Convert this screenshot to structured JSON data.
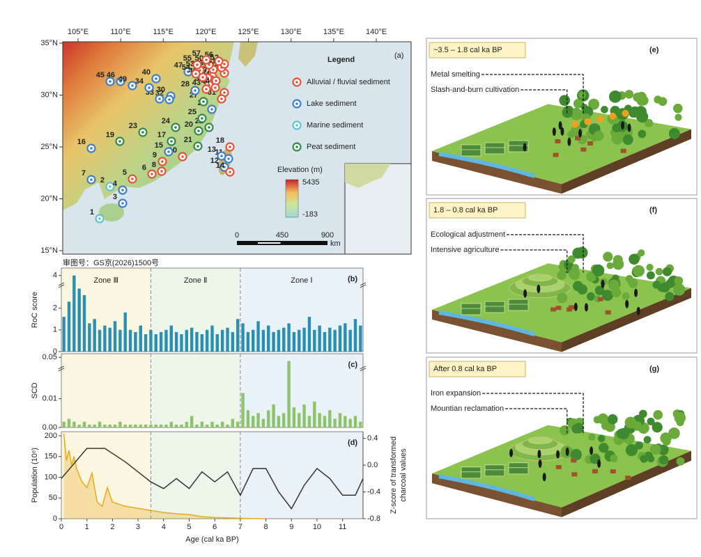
{
  "map": {
    "panel_label": "(a)",
    "legend_title": "Legend",
    "site_types": [
      {
        "name": "Alluvial / fluvial  sediment",
        "color": "#e0553a"
      },
      {
        "name": "Lake sediment",
        "color": "#3d7fc9"
      },
      {
        "name": "Marine sediment",
        "color": "#5cc4d6"
      },
      {
        "name": "Peat  sediment",
        "color": "#2e8b4a"
      }
    ],
    "sites": {
      "labels": [
        "1",
        "2",
        "3",
        "4",
        "5",
        "6",
        "7",
        "8",
        "9",
        "10",
        "11",
        "12",
        "13",
        "14",
        "15",
        "16",
        "17",
        "18",
        "19",
        "20",
        "21",
        "22",
        "23",
        "24",
        "25",
        "26",
        "27",
        "28",
        "29",
        "30",
        "31",
        "32",
        "33",
        "34",
        "35",
        "36",
        "37",
        "38",
        "39",
        "40",
        "41",
        "42",
        "43",
        "44",
        "45",
        "46",
        "47",
        "48",
        "49",
        "50",
        "51",
        "52",
        "53",
        "54",
        "55",
        "56",
        "57"
      ],
      "types": [
        2,
        2,
        1,
        1,
        0,
        0,
        1,
        0,
        0,
        0,
        1,
        1,
        1,
        0,
        1,
        1,
        3,
        0,
        3,
        3,
        3,
        3,
        3,
        3,
        3,
        1,
        3,
        1,
        0,
        1,
        0,
        1,
        1,
        1,
        0,
        0,
        0,
        0,
        0,
        1,
        0,
        0,
        0,
        0,
        1,
        1,
        1,
        0,
        1,
        0,
        0,
        0,
        0,
        0,
        0,
        0,
        0
      ]
    },
    "lon_ticks": [
      {
        "value": 105,
        "label": "105°E"
      },
      {
        "value": 110,
        "label": "110°E"
      },
      {
        "value": 115,
        "label": "115°E"
      },
      {
        "value": 120,
        "label": "120°E"
      },
      {
        "value": 125,
        "label": "125°E"
      },
      {
        "value": 130,
        "label": "130°E"
      },
      {
        "value": 135,
        "label": "135°E"
      },
      {
        "value": 140,
        "label": "140°E"
      }
    ],
    "lat_ticks": [
      {
        "value": 35,
        "label": "35°N"
      },
      {
        "value": 30,
        "label": "30°N"
      },
      {
        "value": 25,
        "label": "25°N"
      },
      {
        "value": 20,
        "label": "20°N"
      },
      {
        "value": 15,
        "label": "15°N"
      }
    ],
    "elevation": {
      "title": "Elevation (m)",
      "max": 5435,
      "min": -183
    },
    "scale_bar": {
      "ticks": [
        0,
        450,
        900
      ],
      "unit": "km"
    },
    "approval_number": "审图号：GS京(2026)1500号"
  },
  "chart_data": [
    {
      "type": "bar",
      "panel_label": "(b)",
      "ylabel": "RoC score",
      "color": "#2a8fb0",
      "zones": [
        {
          "label": "Zone Ⅲ",
          "range": [
            0,
            3.5
          ],
          "color": "#fbf6df"
        },
        {
          "label": "Zone Ⅱ",
          "range": [
            3.5,
            7
          ],
          "color": "#eef6ea"
        },
        {
          "label": "Zone Ⅰ",
          "range": [
            7,
            11.8
          ],
          "color": "#e9f2f8"
        }
      ],
      "xlim": [
        0,
        11.8
      ],
      "ylim": [
        0,
        4.2
      ],
      "ybreak": [
        3,
        3.8
      ],
      "yticks": [
        0,
        1,
        2,
        4
      ],
      "x": [
        0.1,
        0.3,
        0.5,
        0.7,
        0.9,
        1.1,
        1.3,
        1.5,
        1.7,
        1.9,
        2.1,
        2.3,
        2.5,
        2.7,
        2.9,
        3.1,
        3.3,
        3.5,
        3.7,
        3.9,
        4.1,
        4.3,
        4.5,
        4.7,
        4.9,
        5.1,
        5.3,
        5.5,
        5.7,
        5.9,
        6.1,
        6.3,
        6.5,
        6.7,
        6.9,
        7.1,
        7.3,
        7.5,
        7.7,
        7.9,
        8.1,
        8.3,
        8.5,
        8.7,
        8.9,
        9.1,
        9.3,
        9.5,
        9.7,
        9.9,
        10.1,
        10.3,
        10.5,
        10.7,
        10.9,
        11.1,
        11.3,
        11.5,
        11.7
      ],
      "values": [
        1.6,
        2.3,
        4.0,
        2.9,
        2.6,
        1.3,
        1.5,
        1.0,
        1.2,
        1.1,
        1.4,
        1.0,
        1.8,
        1.0,
        0.9,
        1.2,
        0.8,
        1.0,
        0.8,
        0.9,
        1.0,
        1.2,
        0.9,
        0.8,
        1.0,
        1.1,
        0.9,
        0.8,
        1.0,
        1.2,
        0.8,
        1.0,
        1.1,
        0.9,
        1.5,
        1.3,
        0.9,
        1.0,
        1.4,
        1.0,
        1.2,
        0.9,
        1.0,
        1.1,
        1.3,
        0.9,
        1.0,
        1.1,
        1.6,
        1.0,
        1.2,
        0.9,
        1.1,
        1.0,
        1.2,
        1.3,
        1.0,
        1.5,
        1.2
      ]
    },
    {
      "type": "bar",
      "panel_label": "(c)",
      "ylabel": "SCD",
      "color": "#8cc46a",
      "xlim": [
        0,
        11.8
      ],
      "ylim": [
        0,
        0.052
      ],
      "ybreak": [
        0.02,
        0.045
      ],
      "yticks": [
        {
          "value": 0,
          "label": "0.00"
        },
        0.01,
        0.05
      ],
      "x": [
        0.1,
        0.3,
        0.5,
        0.7,
        0.9,
        1.1,
        1.3,
        1.5,
        1.7,
        1.9,
        2.1,
        2.3,
        2.5,
        2.7,
        2.9,
        3.1,
        3.3,
        3.5,
        3.7,
        3.9,
        4.1,
        4.3,
        4.5,
        4.7,
        4.9,
        5.1,
        5.3,
        5.5,
        5.7,
        5.9,
        6.1,
        6.3,
        6.5,
        6.7,
        6.9,
        7.1,
        7.3,
        7.5,
        7.7,
        7.9,
        8.1,
        8.3,
        8.5,
        8.7,
        8.9,
        9.1,
        9.3,
        9.5,
        9.7,
        9.9,
        10.1,
        10.3,
        10.5,
        10.7,
        10.9,
        11.1,
        11.3,
        11.5,
        11.7
      ],
      "values": [
        0.002,
        0.003,
        0.002,
        0.001,
        0.002,
        0.001,
        0.001,
        0.002,
        0.001,
        0.001,
        0.001,
        0.002,
        0.001,
        0.001,
        0.001,
        0.001,
        0.001,
        0.001,
        0.001,
        0.001,
        0.001,
        0.002,
        0.001,
        0.001,
        0.002,
        0.004,
        0.001,
        0.002,
        0.001,
        0.002,
        0.001,
        0.002,
        0.001,
        0.003,
        0.002,
        0.012,
        0.006,
        0.004,
        0.005,
        0.003,
        0.006,
        0.008,
        0.004,
        0.005,
        0.048,
        0.007,
        0.005,
        0.008,
        0.004,
        0.009,
        0.005,
        0.004,
        0.006,
        0.003,
        0.005,
        0.004,
        0.003,
        0.004,
        0.002
      ]
    },
    {
      "type": "line",
      "panel_label": "(d)",
      "ylabel": "Population (10⁶)",
      "y2label": [
        "Z-score of transformed",
        "charcoal values"
      ],
      "xlabel": "Age (cal ka BP)",
      "xlim": [
        0,
        11.8
      ],
      "xticks": [
        0,
        1,
        2,
        3,
        4,
        5,
        6,
        7,
        8,
        9,
        10,
        11
      ],
      "ylim": [
        0,
        210
      ],
      "yticks": [
        0,
        50,
        100,
        150,
        200
      ],
      "y2lim": [
        -0.8,
        0.5
      ],
      "y2ticks": [
        -0.8,
        -0.4,
        {
          "value": 0,
          "label": "0.0"
        },
        0.4
      ],
      "series": [
        {
          "name": "Population",
          "color": "#e8a820",
          "area": true,
          "x": [
            0.1,
            0.2,
            0.3,
            0.4,
            0.5,
            0.6,
            0.8,
            1.0,
            1.2,
            1.4,
            1.6,
            1.8,
            2.0,
            2.5,
            3.0,
            3.5,
            4.0,
            4.5,
            5.0,
            5.5,
            6.0,
            7.0,
            8.0
          ],
          "values": [
            205,
            140,
            165,
            130,
            150,
            120,
            90,
            75,
            110,
            40,
            30,
            75,
            40,
            30,
            25,
            20,
            15,
            12,
            10,
            5,
            3,
            1,
            0
          ]
        },
        {
          "name": "Z-score",
          "color": "#333333",
          "axis": "y2",
          "x": [
            0,
            1,
            1.7,
            2.5,
            3.5,
            4.0,
            4.5,
            5,
            5.5,
            6,
            6.5,
            7,
            7.5,
            8,
            8.5,
            9,
            9.5,
            10,
            10.5,
            11,
            11.5,
            11.8
          ],
          "values": [
            -0.2,
            0.25,
            0.25,
            0.05,
            -0.25,
            -0.35,
            -0.2,
            -0.35,
            -0.1,
            -0.25,
            -0.1,
            -0.45,
            -0.05,
            -0.05,
            -0.4,
            -0.65,
            -0.3,
            -0.05,
            -0.2,
            -0.45,
            -0.45,
            -0.2
          ]
        }
      ]
    }
  ],
  "scenes": [
    {
      "label": "(e)",
      "period": "~3.5 – 1.8 cal ka BP",
      "annotations": [
        "Metal smelting",
        "Slash-and-burn cultivation"
      ]
    },
    {
      "label": "(f)",
      "period": "1.8 – 0.8 cal ka BP",
      "annotations": [
        "Ecological adjustment",
        "Intensive agriculture"
      ]
    },
    {
      "label": "(g)",
      "period": "After 0.8 cal ka BP",
      "annotations": [
        "Iron expansion",
        "Mountian reclamation"
      ]
    }
  ]
}
